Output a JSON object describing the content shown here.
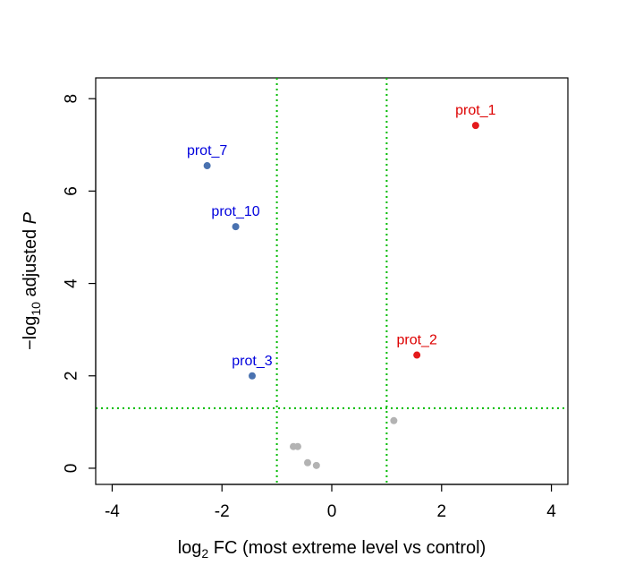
{
  "chart_data": {
    "type": "scatter",
    "title": "",
    "xlabel": {
      "base": "log",
      "sub": "2",
      "rest": " FC (most extreme level vs control)"
    },
    "ylabel": {
      "prefix": "−log",
      "sub": "10",
      "middle": " adjusted ",
      "italic": "P"
    },
    "xlim": [
      -4.3,
      4.3
    ],
    "ylim": [
      -0.35,
      8.45
    ],
    "x_ticks": [
      -4,
      -2,
      0,
      2,
      4
    ],
    "x_tick_labels": [
      "-4",
      "-2",
      "0",
      "2",
      "4"
    ],
    "y_ticks": [
      0,
      2,
      4,
      6,
      8
    ],
    "y_tick_labels": [
      "0",
      "2",
      "4",
      "6",
      "8"
    ],
    "grid": false,
    "thresholds": {
      "vertical": [
        -1,
        1
      ],
      "horizontal": 1.3,
      "color": "#00bb00",
      "style": "dotted"
    },
    "colors": {
      "up": "#e41a1c",
      "down": "#4a72b0",
      "ns": "#b3b3b3",
      "label_up": "#dd0000",
      "label_down": "#0000dd"
    },
    "points": [
      {
        "label": "prot_1",
        "x": 2.62,
        "y": 7.42,
        "group": "up"
      },
      {
        "label": "prot_2",
        "x": 1.55,
        "y": 2.45,
        "group": "up"
      },
      {
        "label": "prot_7",
        "x": -2.27,
        "y": 6.55,
        "group": "down"
      },
      {
        "label": "prot_10",
        "x": -1.75,
        "y": 5.23,
        "group": "down"
      },
      {
        "label": "prot_3",
        "x": -1.45,
        "y": 2.0,
        "group": "down"
      },
      {
        "label": "",
        "x": 1.13,
        "y": 1.03,
        "group": "ns"
      },
      {
        "label": "",
        "x": -0.7,
        "y": 0.47,
        "group": "ns"
      },
      {
        "label": "",
        "x": -0.62,
        "y": 0.47,
        "group": "ns"
      },
      {
        "label": "",
        "x": -0.44,
        "y": 0.12,
        "group": "ns"
      },
      {
        "label": "",
        "x": -0.28,
        "y": 0.06,
        "group": "ns"
      }
    ]
  }
}
